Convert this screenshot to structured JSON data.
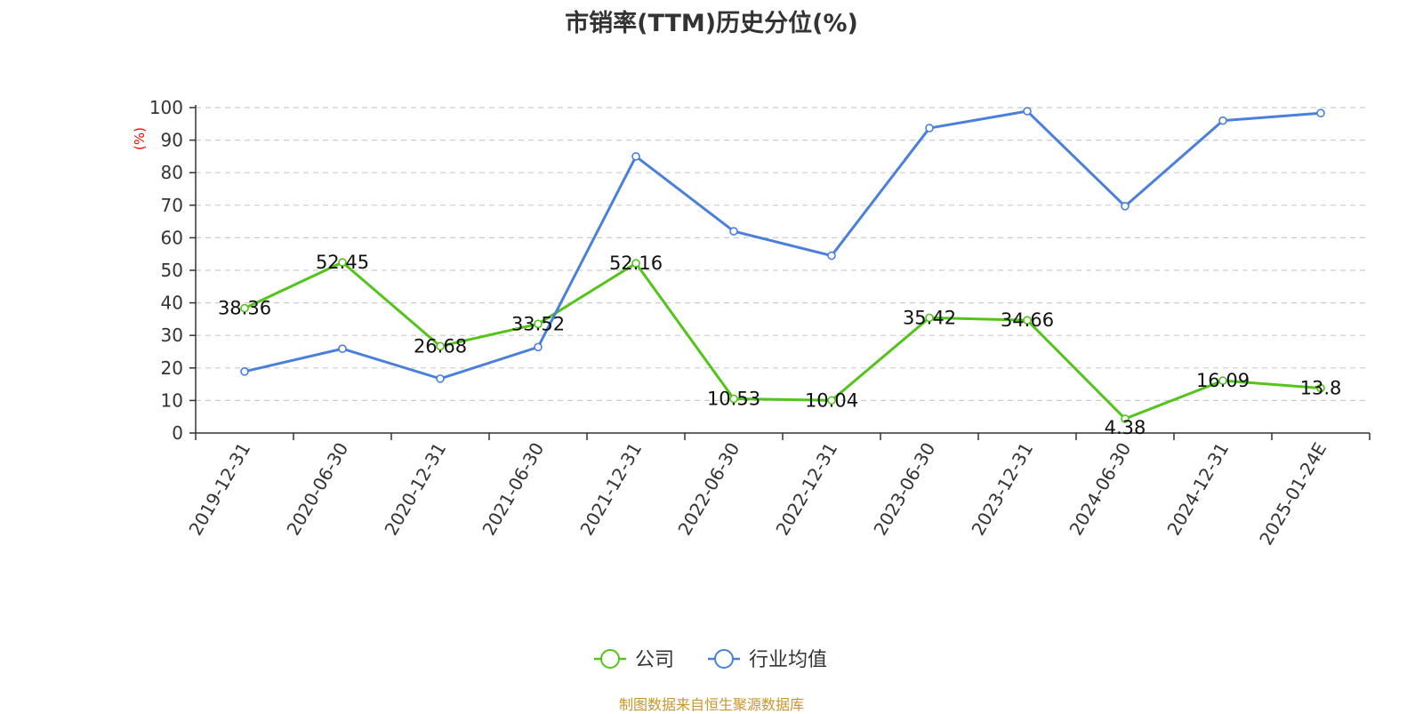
{
  "credit": "制图数据来自恒生聚源数据库",
  "chart_data": {
    "type": "line",
    "title": "市销率(TTM)历史分位(%)",
    "xlabel": "",
    "ylabel": "(%)",
    "ylim": [
      0,
      100
    ],
    "yticks": [
      0,
      10,
      20,
      30,
      40,
      50,
      60,
      70,
      80,
      90,
      100
    ],
    "grid": true,
    "legend_position": "bottom-center",
    "categories": [
      "2019-12-31",
      "2020-06-30",
      "2020-12-31",
      "2021-06-30",
      "2021-12-31",
      "2022-06-30",
      "2022-12-31",
      "2023-06-30",
      "2023-12-31",
      "2024-06-30",
      "2024-12-31",
      "2025-01-24E"
    ],
    "series": [
      {
        "name": "公司",
        "color": "#52c41a",
        "values": [
          38.36,
          52.45,
          26.68,
          33.52,
          52.16,
          10.53,
          10.04,
          35.42,
          34.66,
          4.38,
          16.09,
          13.8
        ],
        "labels": [
          "38.36",
          "52.45",
          "26.68",
          "33.52",
          "52.16",
          "10.53",
          "10.04",
          "35.42",
          "34.66",
          "4.38",
          "16.09",
          "13.8"
        ]
      },
      {
        "name": "行业均值",
        "color": "#4a7fdb",
        "values": [
          18.9,
          25.9,
          16.7,
          26.4,
          85.0,
          62.0,
          54.5,
          93.7,
          98.9,
          69.7,
          96.0,
          98.3
        ]
      }
    ]
  }
}
